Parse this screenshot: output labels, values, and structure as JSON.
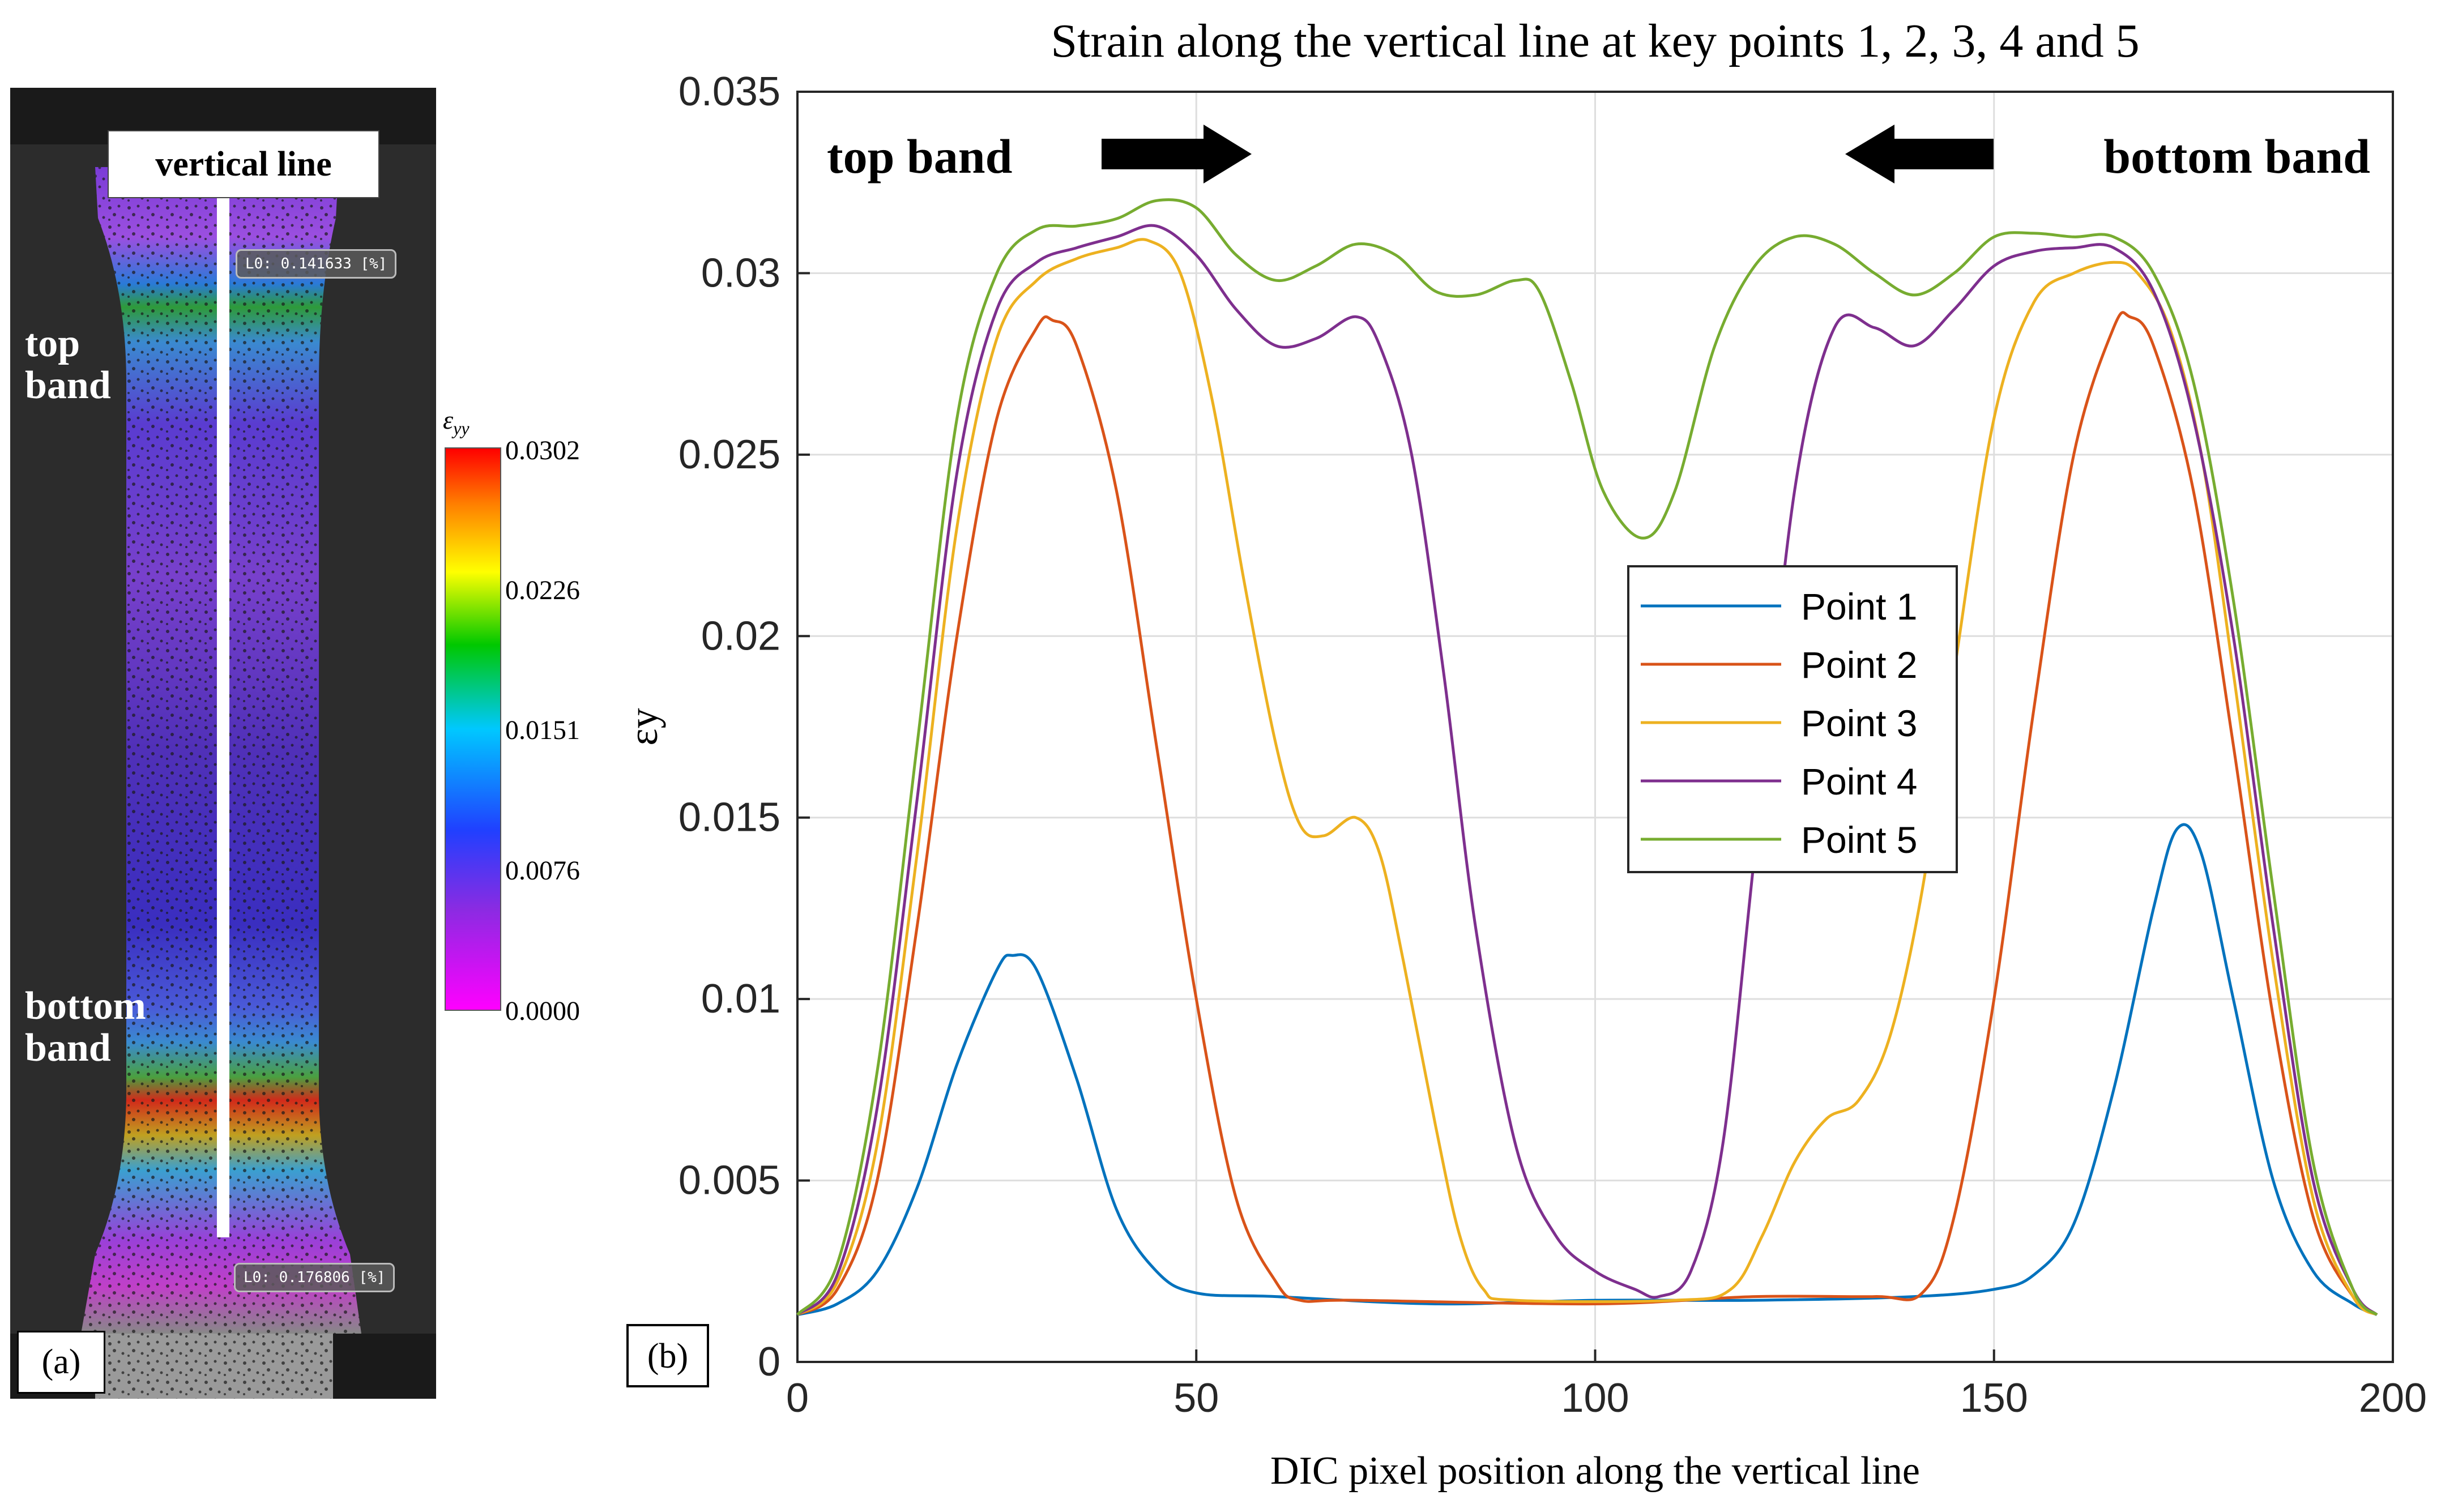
{
  "panel_a": {
    "vertical_line_label": "vertical line",
    "top_band_label_1": "top",
    "top_band_label_2": "band",
    "bottom_band_label_1": "bottom",
    "bottom_band_label_2": "band",
    "lo_top": "L0: 0.141633 [%]",
    "lo_bottom": "L0: 0.176806 [%]",
    "tag": "(a)",
    "colorbar": {
      "title": "εyy",
      "ticks": [
        "0.0302",
        "0.0226",
        "0.0151",
        "0.0076",
        "0.0000"
      ],
      "colors": [
        "#ff0000",
        "#ffff00",
        "#00c800",
        "#00c8ff",
        "#2040ff",
        "#8a2be2",
        "#ff00ff"
      ]
    }
  },
  "panel_b": {
    "tag": "(b)",
    "top_band_annotation": "top band",
    "bottom_band_annotation": "bottom band"
  },
  "chart_data": {
    "type": "line",
    "title": "Strain along the vertical line at key points 1, 2, 3, 4 and 5",
    "xlabel": "DIC pixel position along the vertical line",
    "ylabel": "εy",
    "xlim": [
      0,
      200
    ],
    "ylim": [
      0,
      0.035
    ],
    "xticks": [
      "0",
      "50",
      "100",
      "150",
      "200"
    ],
    "yticks": [
      "0",
      "0.005",
      "0.01",
      "0.015",
      "0.02",
      "0.025",
      "0.03",
      "0.035"
    ],
    "grid": true,
    "legend_position": "center-right",
    "series": [
      {
        "name": "Point 1",
        "color": "#0072BD",
        "points": [
          [
            0,
            0.0013
          ],
          [
            5,
            0.0016
          ],
          [
            10,
            0.0025
          ],
          [
            15,
            0.0048
          ],
          [
            20,
            0.0082
          ],
          [
            25,
            0.0108
          ],
          [
            27,
            0.0112
          ],
          [
            30,
            0.0108
          ],
          [
            35,
            0.0078
          ],
          [
            40,
            0.0042
          ],
          [
            45,
            0.0025
          ],
          [
            50,
            0.0019
          ],
          [
            60,
            0.0018
          ],
          [
            80,
            0.0016
          ],
          [
            100,
            0.0017
          ],
          [
            120,
            0.0017
          ],
          [
            140,
            0.0018
          ],
          [
            150,
            0.002
          ],
          [
            155,
            0.0024
          ],
          [
            160,
            0.0038
          ],
          [
            165,
            0.0075
          ],
          [
            170,
            0.0125
          ],
          [
            173,
            0.0147
          ],
          [
            176,
            0.014
          ],
          [
            180,
            0.01
          ],
          [
            185,
            0.005
          ],
          [
            190,
            0.0025
          ],
          [
            195,
            0.0016
          ],
          [
            198,
            0.0013
          ]
        ]
      },
      {
        "name": "Point 2",
        "color": "#D95319",
        "points": [
          [
            0,
            0.0013
          ],
          [
            5,
            0.002
          ],
          [
            10,
            0.005
          ],
          [
            15,
            0.012
          ],
          [
            20,
            0.02
          ],
          [
            25,
            0.026
          ],
          [
            30,
            0.0285
          ],
          [
            32,
            0.0287
          ],
          [
            35,
            0.028
          ],
          [
            40,
            0.024
          ],
          [
            45,
            0.017
          ],
          [
            50,
            0.01
          ],
          [
            55,
            0.0045
          ],
          [
            60,
            0.0022
          ],
          [
            63,
            0.0017
          ],
          [
            70,
            0.0017
          ],
          [
            100,
            0.0016
          ],
          [
            120,
            0.0018
          ],
          [
            135,
            0.0018
          ],
          [
            141,
            0.0019
          ],
          [
            145,
            0.004
          ],
          [
            150,
            0.01
          ],
          [
            155,
            0.018
          ],
          [
            160,
            0.025
          ],
          [
            165,
            0.0285
          ],
          [
            167,
            0.0288
          ],
          [
            170,
            0.028
          ],
          [
            175,
            0.024
          ],
          [
            180,
            0.017
          ],
          [
            185,
            0.0095
          ],
          [
            190,
            0.004
          ],
          [
            195,
            0.0018
          ],
          [
            198,
            0.0013
          ]
        ]
      },
      {
        "name": "Point 3",
        "color": "#EDB120",
        "points": [
          [
            0,
            0.0013
          ],
          [
            5,
            0.0022
          ],
          [
            10,
            0.006
          ],
          [
            15,
            0.014
          ],
          [
            20,
            0.023
          ],
          [
            25,
            0.0282
          ],
          [
            30,
            0.0298
          ],
          [
            35,
            0.0304
          ],
          [
            40,
            0.0307
          ],
          [
            44,
            0.0309
          ],
          [
            48,
            0.03
          ],
          [
            52,
            0.0265
          ],
          [
            56,
            0.0215
          ],
          [
            60,
            0.017
          ],
          [
            63,
            0.0148
          ],
          [
            66,
            0.0145
          ],
          [
            70,
            0.015
          ],
          [
            73,
            0.014
          ],
          [
            76,
            0.011
          ],
          [
            80,
            0.0065
          ],
          [
            83,
            0.0035
          ],
          [
            86,
            0.002
          ],
          [
            90,
            0.0017
          ],
          [
            110,
            0.0017
          ],
          [
            117,
            0.002
          ],
          [
            121,
            0.0035
          ],
          [
            125,
            0.0055
          ],
          [
            129,
            0.0067
          ],
          [
            133,
            0.0072
          ],
          [
            137,
            0.009
          ],
          [
            141,
            0.013
          ],
          [
            145,
            0.019
          ],
          [
            150,
            0.026
          ],
          [
            155,
            0.0292
          ],
          [
            160,
            0.03
          ],
          [
            165,
            0.0303
          ],
          [
            168,
            0.03
          ],
          [
            172,
            0.0285
          ],
          [
            176,
            0.025
          ],
          [
            180,
            0.019
          ],
          [
            185,
            0.011
          ],
          [
            190,
            0.0045
          ],
          [
            195,
            0.0018
          ],
          [
            198,
            0.0013
          ]
        ]
      },
      {
        "name": "Point 4",
        "color": "#7E2F8E",
        "points": [
          [
            0,
            0.0013
          ],
          [
            5,
            0.0024
          ],
          [
            10,
            0.007
          ],
          [
            15,
            0.0155
          ],
          [
            20,
            0.0245
          ],
          [
            25,
            0.029
          ],
          [
            30,
            0.0303
          ],
          [
            35,
            0.0307
          ],
          [
            40,
            0.031
          ],
          [
            45,
            0.0313
          ],
          [
            50,
            0.0305
          ],
          [
            55,
            0.029
          ],
          [
            60,
            0.028
          ],
          [
            65,
            0.0282
          ],
          [
            70,
            0.0288
          ],
          [
            73,
            0.028
          ],
          [
            77,
            0.025
          ],
          [
            81,
            0.019
          ],
          [
            85,
            0.012
          ],
          [
            90,
            0.006
          ],
          [
            95,
            0.0035
          ],
          [
            100,
            0.0025
          ],
          [
            105,
            0.002
          ],
          [
            108,
            0.0018
          ],
          [
            112,
            0.0025
          ],
          [
            116,
            0.006
          ],
          [
            120,
            0.014
          ],
          [
            125,
            0.024
          ],
          [
            130,
            0.0285
          ],
          [
            135,
            0.0285
          ],
          [
            140,
            0.028
          ],
          [
            145,
            0.029
          ],
          [
            150,
            0.0302
          ],
          [
            155,
            0.0306
          ],
          [
            160,
            0.0307
          ],
          [
            165,
            0.0307
          ],
          [
            170,
            0.0295
          ],
          [
            175,
            0.026
          ],
          [
            180,
            0.02
          ],
          [
            185,
            0.012
          ],
          [
            190,
            0.005
          ],
          [
            195,
            0.002
          ],
          [
            198,
            0.0013
          ]
        ]
      },
      {
        "name": "Point 5",
        "color": "#77AC30",
        "points": [
          [
            0,
            0.0013
          ],
          [
            5,
            0.0027
          ],
          [
            10,
            0.008
          ],
          [
            15,
            0.017
          ],
          [
            20,
            0.026
          ],
          [
            25,
            0.03
          ],
          [
            30,
            0.0312
          ],
          [
            35,
            0.0313
          ],
          [
            40,
            0.0315
          ],
          [
            45,
            0.032
          ],
          [
            50,
            0.0318
          ],
          [
            55,
            0.0305
          ],
          [
            60,
            0.0298
          ],
          [
            65,
            0.0302
          ],
          [
            70,
            0.0308
          ],
          [
            75,
            0.0305
          ],
          [
            80,
            0.0295
          ],
          [
            85,
            0.0294
          ],
          [
            90,
            0.0298
          ],
          [
            93,
            0.0295
          ],
          [
            97,
            0.027
          ],
          [
            101,
            0.024
          ],
          [
            106,
            0.0227
          ],
          [
            110,
            0.024
          ],
          [
            115,
            0.028
          ],
          [
            120,
            0.0302
          ],
          [
            125,
            0.031
          ],
          [
            130,
            0.0308
          ],
          [
            135,
            0.03
          ],
          [
            140,
            0.0294
          ],
          [
            145,
            0.03
          ],
          [
            150,
            0.031
          ],
          [
            155,
            0.0311
          ],
          [
            160,
            0.031
          ],
          [
            165,
            0.031
          ],
          [
            170,
            0.03
          ],
          [
            175,
            0.027
          ],
          [
            180,
            0.021
          ],
          [
            185,
            0.013
          ],
          [
            190,
            0.0055
          ],
          [
            195,
            0.002
          ],
          [
            198,
            0.0013
          ]
        ]
      }
    ]
  }
}
